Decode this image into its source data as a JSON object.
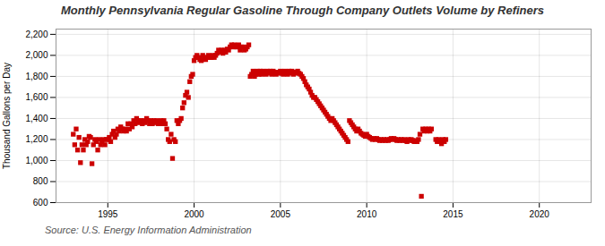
{
  "chart_data": {
    "type": "scatter",
    "title": "Monthly Pennsylvania Regular Gasoline Through Company Outlets Volume by Refiners",
    "ylabel": "Thousand Gallons per Day",
    "source": "Source: U.S. Energy Information Administration",
    "color": "#CC0000",
    "marker": "square",
    "grid": true,
    "xlim": [
      1992.0,
      2023.0
    ],
    "xticks": [
      1995,
      2000,
      2005,
      2010,
      2015,
      2020
    ],
    "ylim": [
      600,
      2250
    ],
    "yticks": [
      600,
      800,
      {
        "value": 1000,
        "label": "1,000"
      },
      {
        "value": 1200,
        "label": "1,200"
      },
      {
        "value": 1400,
        "label": "1,400"
      },
      {
        "value": 1600,
        "label": "1,600"
      },
      {
        "value": 1800,
        "label": "1,800"
      },
      {
        "value": 2000,
        "label": "2,000"
      },
      {
        "value": 2200,
        "label": "2,200"
      }
    ],
    "x": [
      1993.0,
      1993.083,
      1993.167,
      1993.25,
      1993.333,
      1993.417,
      1993.5,
      1993.583,
      1993.667,
      1993.75,
      1993.833,
      1993.917,
      1994.0,
      1994.083,
      1994.167,
      1994.25,
      1994.333,
      1994.417,
      1994.5,
      1994.583,
      1994.667,
      1994.75,
      1994.833,
      1994.917,
      1995.0,
      1995.083,
      1995.167,
      1995.25,
      1995.333,
      1995.417,
      1995.5,
      1995.583,
      1995.667,
      1995.75,
      1995.833,
      1995.917,
      1996.0,
      1996.083,
      1996.167,
      1996.25,
      1996.333,
      1996.417,
      1996.5,
      1996.583,
      1996.667,
      1996.75,
      1996.833,
      1996.917,
      1997.0,
      1997.083,
      1997.167,
      1997.25,
      1997.333,
      1997.417,
      1997.5,
      1997.583,
      1997.667,
      1997.75,
      1997.833,
      1997.917,
      1998.0,
      1998.083,
      1998.167,
      1998.25,
      1998.333,
      1998.417,
      1998.5,
      1998.583,
      1998.667,
      1998.75,
      1998.833,
      1998.917,
      1999.0,
      1999.083,
      1999.167,
      1999.25,
      1999.333,
      1999.417,
      1999.5,
      1999.583,
      1999.667,
      1999.75,
      1999.833,
      1999.917,
      2000.0,
      2000.083,
      2000.167,
      2000.25,
      2000.333,
      2000.417,
      2000.5,
      2000.583,
      2000.667,
      2000.75,
      2000.833,
      2000.917,
      2001.0,
      2001.083,
      2001.167,
      2001.25,
      2001.333,
      2001.417,
      2001.5,
      2001.583,
      2001.667,
      2001.75,
      2001.833,
      2001.917,
      2002.0,
      2002.083,
      2002.167,
      2002.25,
      2002.333,
      2002.417,
      2002.5,
      2002.583,
      2002.667,
      2002.75,
      2002.833,
      2002.917,
      2003.0,
      2003.083,
      2003.167,
      2003.25,
      2003.333,
      2003.417,
      2003.5,
      2003.583,
      2003.667,
      2003.75,
      2003.833,
      2003.917,
      2004.0,
      2004.083,
      2004.167,
      2004.25,
      2004.333,
      2004.417,
      2004.5,
      2004.583,
      2004.667,
      2004.75,
      2004.833,
      2004.917,
      2005.0,
      2005.083,
      2005.167,
      2005.25,
      2005.333,
      2005.417,
      2005.5,
      2005.583,
      2005.667,
      2005.75,
      2005.833,
      2005.917,
      2006.0,
      2006.083,
      2006.167,
      2006.25,
      2006.333,
      2006.417,
      2006.5,
      2006.583,
      2006.667,
      2006.75,
      2006.833,
      2006.917,
      2007.0,
      2007.083,
      2007.167,
      2007.25,
      2007.333,
      2007.417,
      2007.5,
      2007.583,
      2007.667,
      2007.75,
      2007.833,
      2007.917,
      2008.0,
      2008.083,
      2008.167,
      2008.25,
      2008.333,
      2008.417,
      2008.5,
      2008.583,
      2008.667,
      2008.75,
      2008.833,
      2008.917,
      2009.0,
      2009.083,
      2009.167,
      2009.25,
      2009.333,
      2009.417,
      2009.5,
      2009.583,
      2009.667,
      2009.75,
      2009.833,
      2009.917,
      2010.0,
      2010.083,
      2010.167,
      2010.25,
      2010.333,
      2010.417,
      2010.5,
      2010.583,
      2010.667,
      2010.75,
      2010.833,
      2010.917,
      2011.0,
      2011.083,
      2011.167,
      2011.25,
      2011.333,
      2011.417,
      2011.5,
      2011.583,
      2011.667,
      2011.75,
      2011.833,
      2011.917,
      2012.0,
      2012.083,
      2012.167,
      2012.25,
      2012.333,
      2012.417,
      2012.5,
      2012.583,
      2012.667,
      2012.75,
      2012.833,
      2012.917,
      2013.0,
      2013.083,
      2013.167,
      2013.25,
      2013.333,
      2013.417,
      2013.5,
      2013.583,
      2013.667,
      2013.75,
      2014.0,
      2014.083,
      2014.167,
      2014.25,
      2014.333,
      2014.417,
      2014.5,
      2014.583
    ],
    "values": [
      1250,
      1150,
      1300,
      1100,
      1220,
      980,
      1150,
      1100,
      1200,
      1150,
      1180,
      1230,
      1220,
      970,
      1150,
      1200,
      1180,
      1100,
      1200,
      1150,
      1180,
      1200,
      1150,
      1200,
      1200,
      1220,
      1180,
      1250,
      1280,
      1220,
      1250,
      1300,
      1280,
      1320,
      1300,
      1280,
      1300,
      1280,
      1350,
      1300,
      1350,
      1320,
      1380,
      1350,
      1400,
      1380,
      1360,
      1380,
      1350,
      1380,
      1360,
      1400,
      1380,
      1350,
      1380,
      1350,
      1380,
      1360,
      1380,
      1350,
      1350,
      1380,
      1350,
      1380,
      1350,
      1300,
      1200,
      1180,
      1250,
      1020,
      1200,
      1180,
      1380,
      1350,
      1380,
      1400,
      1500,
      1550,
      1620,
      1650,
      1600,
      1750,
      1800,
      1820,
      1950,
      1980,
      2000,
      1980,
      1960,
      1950,
      2000,
      1980,
      1960,
      1980,
      2000,
      1980,
      1980,
      2000,
      1980,
      2000,
      2020,
      2050,
      2030,
      2050,
      2020,
      2050,
      2030,
      2060,
      2050,
      2080,
      2100,
      2080,
      2100,
      2080,
      2080,
      2100,
      2050,
      2080,
      2080,
      2050,
      2060,
      2080,
      2100,
      1800,
      1820,
      1850,
      1800,
      1820,
      1850,
      1820,
      1850,
      1820,
      1850,
      1830,
      1820,
      1850,
      1830,
      1850,
      1820,
      1850,
      1830,
      1820,
      1840,
      1830,
      1850,
      1830,
      1820,
      1850,
      1830,
      1820,
      1850,
      1830,
      1850,
      1820,
      1840,
      1830,
      1850,
      1830,
      1820,
      1800,
      1780,
      1750,
      1720,
      1700,
      1680,
      1650,
      1620,
      1600,
      1600,
      1580,
      1560,
      1540,
      1520,
      1500,
      1480,
      1460,
      1440,
      1420,
      1400,
      1380,
      1400,
      1380,
      1360,
      1340,
      1320,
      1300,
      1280,
      1260,
      1240,
      1220,
      1200,
      1180,
      1380,
      1360,
      1340,
      1320,
      1300,
      1280,
      1300,
      1280,
      1260,
      1250,
      1240,
      1230,
      1250,
      1230,
      1220,
      1210,
      1200,
      1210,
      1200,
      1210,
      1200,
      1190,
      1200,
      1190,
      1200,
      1190,
      1200,
      1190,
      1200,
      1210,
      1200,
      1210,
      1200,
      1190,
      1200,
      1190,
      1200,
      1190,
      1200,
      1190,
      1180,
      1200,
      1190,
      1200,
      1190,
      1180,
      1190,
      1180,
      1200,
      1250,
      660,
      1300,
      1280,
      1300,
      1280,
      1300,
      1280,
      1300,
      1200,
      1180,
      1200,
      1180,
      1160,
      1200,
      1180,
      1200
    ]
  }
}
